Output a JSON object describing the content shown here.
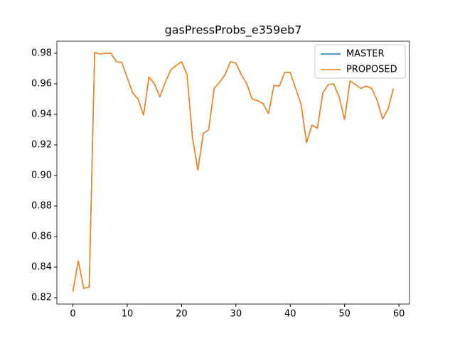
{
  "chart_data": {
    "type": "line",
    "title": "gasPressProbs_e359eb7",
    "x": [
      0,
      1,
      2,
      3,
      4,
      5,
      6,
      7,
      8,
      9,
      10,
      11,
      12,
      13,
      14,
      15,
      16,
      17,
      18,
      19,
      20,
      21,
      22,
      23,
      24,
      25,
      26,
      27,
      28,
      29,
      30,
      31,
      32,
      33,
      34,
      35,
      36,
      37,
      38,
      39,
      40,
      41,
      42,
      43,
      44,
      45,
      46,
      47,
      48,
      49,
      50,
      51,
      52,
      53,
      54,
      55,
      56,
      57,
      58,
      59
    ],
    "series": [
      {
        "name": "MASTER",
        "color": "#1f77b4",
        "values": [
          0.824,
          0.844,
          0.826,
          0.827,
          0.9805,
          0.9795,
          0.98,
          0.98,
          0.9745,
          0.974,
          0.964,
          0.954,
          0.95,
          0.9395,
          0.9645,
          0.96,
          0.9515,
          0.961,
          0.969,
          0.972,
          0.9745,
          0.966,
          0.925,
          0.9035,
          0.9275,
          0.93,
          0.957,
          0.961,
          0.966,
          0.9745,
          0.9735,
          0.966,
          0.96,
          0.95,
          0.949,
          0.947,
          0.9405,
          0.959,
          0.9585,
          0.9675,
          0.9675,
          0.957,
          0.9465,
          0.9215,
          0.933,
          0.931,
          0.954,
          0.9595,
          0.96,
          0.9515,
          0.9365,
          0.962,
          0.9595,
          0.957,
          0.9585,
          0.957,
          0.949,
          0.937,
          0.9435,
          0.957
        ]
      },
      {
        "name": "PROPOSED",
        "color": "#ff7f0e",
        "values": [
          0.824,
          0.844,
          0.826,
          0.827,
          0.9805,
          0.9795,
          0.98,
          0.98,
          0.9745,
          0.974,
          0.964,
          0.954,
          0.95,
          0.9395,
          0.9645,
          0.96,
          0.9515,
          0.961,
          0.969,
          0.972,
          0.9745,
          0.966,
          0.925,
          0.9035,
          0.9275,
          0.93,
          0.957,
          0.961,
          0.966,
          0.9745,
          0.9735,
          0.966,
          0.96,
          0.95,
          0.949,
          0.947,
          0.9405,
          0.959,
          0.9585,
          0.9675,
          0.9675,
          0.957,
          0.9465,
          0.9215,
          0.933,
          0.931,
          0.954,
          0.9595,
          0.96,
          0.9515,
          0.9365,
          0.962,
          0.9595,
          0.957,
          0.9585,
          0.957,
          0.949,
          0.937,
          0.9435,
          0.957
        ]
      }
    ],
    "xlim": [
      -2.95,
      61.95
    ],
    "xticks": [
      0,
      10,
      20,
      30,
      40,
      50,
      60
    ],
    "ylim": [
      0.8158,
      0.9879
    ],
    "yticks": [
      0.82,
      0.84,
      0.86,
      0.88,
      {
        "value": 0.9,
        "label": "0.90"
      },
      0.92,
      0.94,
      0.96,
      0.98
    ],
    "legend": "upper right"
  }
}
